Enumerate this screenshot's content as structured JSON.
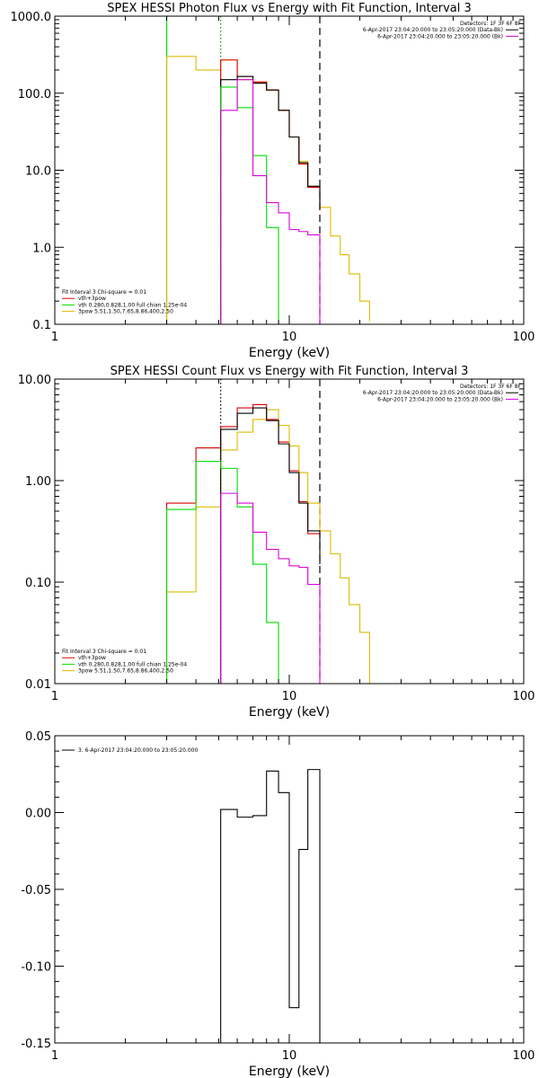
{
  "chart_data": [
    {
      "type": "line",
      "title": "SPEX HESSI Photon Flux vs Energy with Fit Function, Interval 3",
      "xlabel": "Energy (keV)",
      "ylabel": "",
      "xscale": "log",
      "yscale": "log",
      "xlim": [
        1,
        100
      ],
      "ylim": [
        0.1,
        1000
      ],
      "xticks": [
        {
          "v": 1,
          "label": "1"
        },
        {
          "v": 10,
          "label": "10"
        },
        {
          "v": 100,
          "label": "100"
        }
      ],
      "yticks": [
        {
          "v": 0.1,
          "label": "0.1"
        },
        {
          "v": 1,
          "label": "1.0"
        },
        {
          "v": 10,
          "label": "10.0"
        },
        {
          "v": 100,
          "label": "100.0"
        },
        {
          "v": 1000,
          "label": "1000.0"
        }
      ],
      "vlines": [
        {
          "x": 3.0,
          "color": "#00dd00",
          "style": "solid"
        },
        {
          "x": 5.1,
          "color": "#009900",
          "style": "dotted"
        },
        {
          "x": 13.5,
          "color": "#000000",
          "style": "dashed"
        }
      ],
      "legend_topright": {
        "lines": [
          {
            "text": "Detectors: 1F 3F 6F 8F",
            "color": ""
          },
          {
            "text": "6-Apr-2017 23:04:20.000 to 23:05:20.000 (Data-Bk)",
            "color": "#000000"
          },
          {
            "text": "6-Apr-2017 23:04:20.000 to 23:05:20.000 (Bk)",
            "color": "#dd00dd"
          }
        ]
      },
      "legend_bottomleft": {
        "lines": [
          {
            "text": "Fit Interval 3   Chi-square = 0.01",
            "color": ""
          },
          {
            "text": "vth+3pow",
            "color": "#dd0000"
          },
          {
            "text": "vth 0.280,0.828,1.00  full chian 1.25e-04",
            "color": "#00dd00"
          },
          {
            "text": "3pow 5.51,1.50,7.65,8.86,400,2.50",
            "color": "#ddbb00"
          }
        ]
      },
      "series": [
        {
          "color": "#ddbb00",
          "edges": [
            3.0,
            4.0,
            5.1,
            6.0,
            7.0,
            8.0,
            9.0,
            10.0,
            11.0,
            12.0,
            13.5,
            15.0,
            16.5,
            18.0,
            20.0,
            22.0
          ],
          "values": [
            300,
            200,
            270,
            150,
            140,
            110,
            60,
            27,
            13,
            6.2,
            3.3,
            1.4,
            0.8,
            0.45,
            0.2,
            0.11
          ]
        },
        {
          "color": "#dd0000",
          "edges": [
            5.1,
            6.0,
            7.0,
            8.0,
            9.0,
            10.0,
            11.0,
            12.0,
            13.5
          ],
          "values": [
            270,
            165,
            140,
            110,
            60,
            27,
            12,
            6.0,
            3.0
          ]
        },
        {
          "color": "#000000",
          "edges": [
            5.1,
            6.0,
            7.0,
            8.0,
            9.0,
            10.0,
            11.0,
            12.0,
            13.5
          ],
          "values": [
            150,
            165,
            135,
            110,
            60,
            27,
            12.5,
            6.2,
            3.1
          ]
        },
        {
          "color": "#00dd00",
          "edges": [
            5.1,
            6.0,
            7.0,
            8.0,
            9.0
          ],
          "values": [
            120,
            65,
            15.5,
            1.8,
            0.1
          ]
        },
        {
          "color": "#dd00dd",
          "edges": [
            5.1,
            6.0,
            7.0,
            8.0,
            9.0,
            10.0,
            11.0,
            12.0,
            13.5
          ],
          "values": [
            60,
            150,
            8.5,
            3.8,
            2.8,
            1.7,
            1.6,
            1.45,
            0.1
          ]
        }
      ]
    },
    {
      "type": "line",
      "title": "SPEX HESSI Count Flux vs Energy with Fit Function, Interval 3",
      "xlabel": "Energy (keV)",
      "ylabel": "",
      "xscale": "log",
      "yscale": "log",
      "xlim": [
        1,
        100
      ],
      "ylim": [
        0.01,
        10
      ],
      "xticks": [
        {
          "v": 1,
          "label": "1"
        },
        {
          "v": 10,
          "label": "10"
        },
        {
          "v": 100,
          "label": "100"
        }
      ],
      "yticks": [
        {
          "v": 0.01,
          "label": "0.01"
        },
        {
          "v": 0.1,
          "label": "0.10"
        },
        {
          "v": 1,
          "label": "1.00"
        },
        {
          "v": 10,
          "label": "10.00"
        }
      ],
      "vlines": [
        {
          "x": 5.1,
          "color": "#000000",
          "style": "dotted"
        },
        {
          "x": 13.5,
          "color": "#000000",
          "style": "dashed"
        }
      ],
      "legend_topright": {
        "lines": [
          {
            "text": "Detectors: 1F 3F 6F 8F",
            "color": ""
          },
          {
            "text": "6-Apr-2017 23:04:20.000 to 23:05:20.000 (Data-Bk)",
            "color": "#000000"
          },
          {
            "text": "6-Apr-2017 23:04:20.000 to 23:05:20.000 (Bk)",
            "color": "#dd00dd"
          }
        ]
      },
      "legend_bottomleft": {
        "lines": [
          {
            "text": "Fit Interval 3   Chi-square = 0.01",
            "color": ""
          },
          {
            "text": "vth+3pow",
            "color": "#dd0000"
          },
          {
            "text": "vth 0.280,0.828,1.00  full chian 1.25e-04",
            "color": "#00dd00"
          },
          {
            "text": "3pow 5.51,1.50,7.65,8.86,400,2.50",
            "color": "#ddbb00"
          }
        ]
      },
      "series": [
        {
          "color": "#dd0000",
          "edges": [
            3.0,
            4.0,
            5.1,
            6.0,
            7.0,
            8.0,
            9.0,
            10.0,
            11.0,
            12.0,
            13.5
          ],
          "values": [
            0.6,
            2.1,
            3.4,
            5.2,
            5.6,
            4.0,
            2.4,
            1.25,
            0.62,
            0.3
          ]
        },
        {
          "color": "#ddbb00",
          "edges": [
            3.0,
            4.0,
            5.1,
            6.0,
            7.0,
            8.0,
            9.0,
            10.0,
            11.0,
            12.0,
            13.5,
            15.0,
            16.5,
            18.0,
            20.0,
            22.0
          ],
          "values": [
            0.08,
            0.55,
            2.0,
            3.0,
            4.0,
            5.0,
            3.5,
            2.2,
            1.2,
            0.6,
            0.32,
            0.19,
            0.11,
            0.06,
            0.032,
            0.01
          ]
        },
        {
          "color": "#000000",
          "edges": [
            5.1,
            6.0,
            7.0,
            8.0,
            9.0,
            10.0,
            11.0,
            12.0,
            13.5
          ],
          "values": [
            3.2,
            4.6,
            5.2,
            3.9,
            2.3,
            1.2,
            0.6,
            0.32,
            0.15
          ]
        },
        {
          "color": "#00dd00",
          "edges": [
            3.0,
            4.0,
            5.1,
            6.0,
            7.0,
            8.0,
            9.0
          ],
          "values": [
            0.52,
            1.55,
            1.32,
            0.55,
            0.15,
            0.04,
            0.01
          ]
        },
        {
          "color": "#dd00dd",
          "edges": [
            5.1,
            6.0,
            7.0,
            8.0,
            9.0,
            10.0,
            11.0,
            12.0,
            13.5
          ],
          "values": [
            0.75,
            0.6,
            0.31,
            0.21,
            0.17,
            0.145,
            0.14,
            0.095,
            0.01
          ]
        }
      ]
    },
    {
      "type": "line",
      "title": "",
      "xlabel": "Energy (keV)",
      "ylabel": "",
      "xscale": "log",
      "yscale": "linear",
      "xlim": [
        1,
        100
      ],
      "ylim": [
        -0.15,
        0.05
      ],
      "xticks": [
        {
          "v": 1,
          "label": "1"
        },
        {
          "v": 10,
          "label": "10"
        },
        {
          "v": 100,
          "label": "100"
        }
      ],
      "yticks": [
        {
          "v": 0.05,
          "label": "0.05"
        },
        {
          "v": 0.0,
          "label": "0.00"
        },
        {
          "v": -0.05,
          "label": "-0.05"
        },
        {
          "v": -0.1,
          "label": "-0.10"
        },
        {
          "v": -0.15,
          "label": "-0.15"
        }
      ],
      "vlines": [],
      "legend_topleft": {
        "lines": [
          {
            "text": "3.  6-Apr-2017 23:04:20.000 to 23:05:20.000",
            "color": "#000000"
          }
        ]
      },
      "series": [
        {
          "color": "#000000",
          "edges": [
            5.1,
            6.0,
            7.0,
            8.0,
            9.0,
            10.0,
            11.0,
            12.0,
            13.5
          ],
          "values": [
            0.002,
            -0.003,
            -0.002,
            0.027,
            0.013,
            -0.127,
            -0.024,
            0.028
          ]
        }
      ]
    }
  ]
}
